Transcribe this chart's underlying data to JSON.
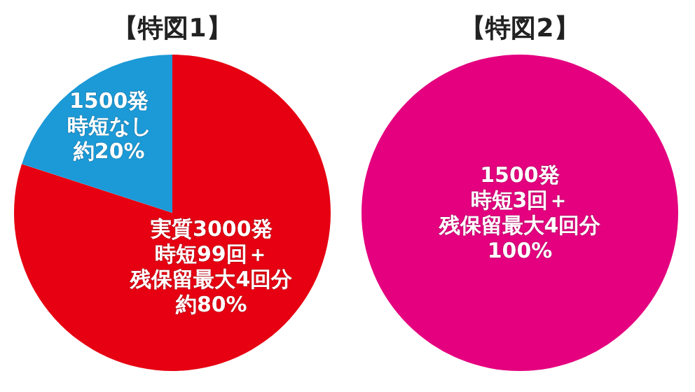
{
  "chart_data": [
    {
      "type": "pie",
      "title": "【特図1】",
      "categories": [
        "実質3000発時短99回＋残保留最大4回分",
        "1500発時短なし"
      ],
      "values": [
        80,
        20
      ],
      "colors": [
        "#e60012",
        "#1b9ad7"
      ],
      "value_labels": [
        "約80%",
        "約20%"
      ]
    },
    {
      "type": "pie",
      "title": "【特図2】",
      "categories": [
        "1500発時短3回＋残保留最大4回分"
      ],
      "values": [
        100
      ],
      "colors": [
        "#e4007f"
      ],
      "value_labels": [
        "100%"
      ]
    }
  ]
}
